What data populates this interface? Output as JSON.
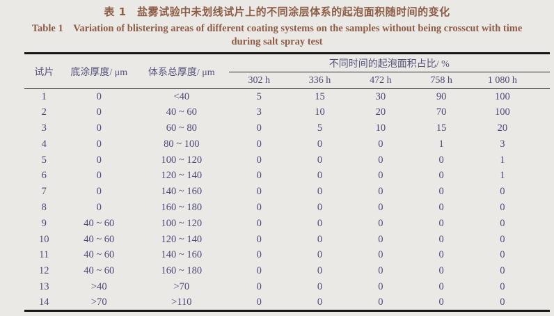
{
  "title": {
    "zh": "表 1　盐雾试验中未划线试片上的不同涂层体系的起泡面积随时间的变化",
    "en_line1": "Table 1  Variation of blistering areas of different coating systems on the samples without being crosscut with time",
    "en_line2": "during salt spray test"
  },
  "table": {
    "headers": {
      "sample": "试片",
      "primer_thickness": "底涂厚度/ μm",
      "total_thickness": "体系总厚度/ μm",
      "group": "不同时间的起泡面积占比/ %",
      "times": [
        "302 h",
        "336 h",
        "472 h",
        "758 h",
        "1 080 h"
      ]
    },
    "rows": [
      [
        "1",
        "0",
        "<40",
        "5",
        "15",
        "30",
        "90",
        "100"
      ],
      [
        "2",
        "0",
        "40 ~ 60",
        "3",
        "10",
        "20",
        "70",
        "100"
      ],
      [
        "3",
        "0",
        "60 ~ 80",
        "0",
        "5",
        "10",
        "15",
        "20"
      ],
      [
        "4",
        "0",
        "80 ~ 100",
        "0",
        "0",
        "0",
        "1",
        "3"
      ],
      [
        "5",
        "0",
        "100 ~ 120",
        "0",
        "0",
        "0",
        "0",
        "1"
      ],
      [
        "6",
        "0",
        "120 ~ 140",
        "0",
        "0",
        "0",
        "0",
        "1"
      ],
      [
        "7",
        "0",
        "140 ~ 160",
        "0",
        "0",
        "0",
        "0",
        "0"
      ],
      [
        "8",
        "0",
        "160 ~ 180",
        "0",
        "0",
        "0",
        "0",
        "0"
      ],
      [
        "9",
        "40 ~ 60",
        "100 ~ 120",
        "0",
        "0",
        "0",
        "0",
        "0"
      ],
      [
        "10",
        "40 ~ 60",
        "120 ~ 140",
        "0",
        "0",
        "0",
        "0",
        "0"
      ],
      [
        "11",
        "40 ~ 60",
        "140 ~ 160",
        "0",
        "0",
        "0",
        "0",
        "0"
      ],
      [
        "12",
        "40 ~ 60",
        "160 ~ 180",
        "0",
        "0",
        "0",
        "0",
        "0"
      ],
      [
        "13",
        ">40",
        ">70",
        "0",
        "0",
        "0",
        "0",
        "0"
      ],
      [
        "14",
        ">70",
        ">110",
        "0",
        "0",
        "0",
        "0",
        "0"
      ]
    ]
  },
  "colors": {
    "bg": "#ebe9e5",
    "title_brown": "#8d5c45",
    "header_purple": "#55517a",
    "data_purple": "#4c4778",
    "rule_black": "#161616"
  }
}
